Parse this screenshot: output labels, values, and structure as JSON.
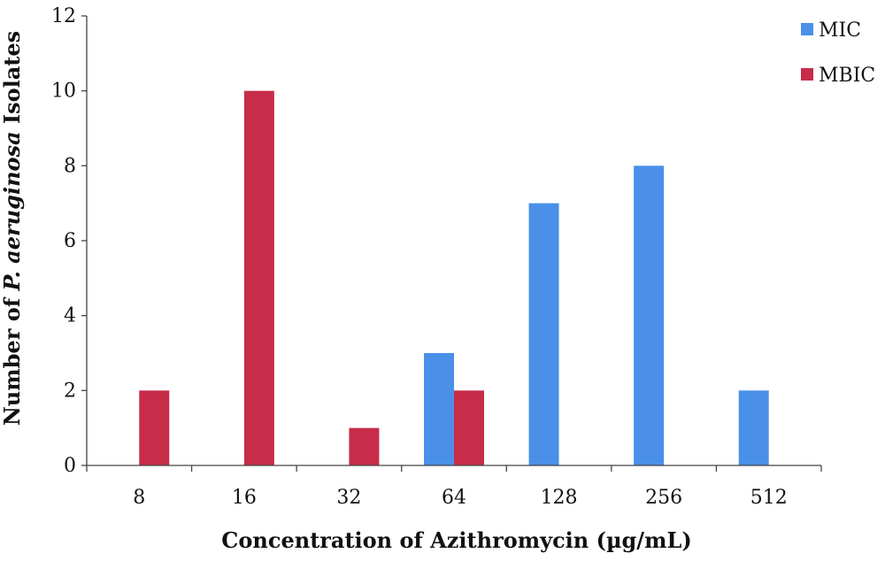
{
  "chart_data": {
    "type": "bar",
    "categories": [
      "8",
      "16",
      "32",
      "64",
      "128",
      "256",
      "512"
    ],
    "series": [
      {
        "name": "MIC",
        "color": "#4a90e8",
        "values": [
          0,
          0,
          0,
          3,
          7,
          8,
          2
        ]
      },
      {
        "name": "MBIC",
        "color": "#c72c48",
        "values": [
          2,
          10,
          1,
          2,
          0,
          0,
          0
        ]
      }
    ],
    "xlabel": "Concentration of Azithromycin (µg/mL)",
    "ylabel": {
      "prefix": "Number of ",
      "italic": "P. aeruginosa",
      "suffix": " Isolates"
    },
    "ylim": [
      0,
      12
    ],
    "yticks": [
      0,
      2,
      4,
      6,
      8,
      10,
      12
    ],
    "grid": false,
    "legend_position": "top-right"
  }
}
